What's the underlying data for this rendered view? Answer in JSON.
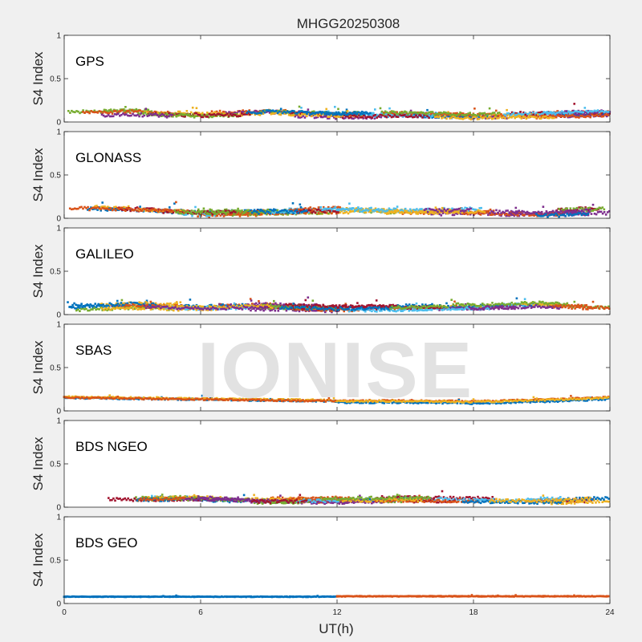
{
  "chart_data": {
    "type": "scatter",
    "title": "MHGG20250308",
    "xlabel": "UT(h)",
    "ylabel": "S4 Index",
    "xlim": [
      0,
      24
    ],
    "ylim": [
      0,
      1
    ],
    "xticks": [
      "0",
      "6",
      "12",
      "18",
      "24"
    ],
    "yticks": [
      "0",
      "0.5",
      "1"
    ],
    "grid": false,
    "watermark": "IONISE",
    "panels": [
      {
        "label": "GPS",
        "baseline": [
          0.09,
          0.11,
          0.08,
          0.1,
          0.08,
          0.09,
          0.07,
          0.08,
          0.1
        ],
        "spread": 0.035,
        "series_colors": [
          "#0072BD",
          "#D95319",
          "#EDB120",
          "#7E2F8E",
          "#77AC30",
          "#4DBEEE",
          "#A2142F"
        ]
      },
      {
        "label": "GLONASS",
        "baseline": [
          0.1,
          0.09,
          0.06,
          0.08,
          0.09,
          0.07,
          0.08,
          0.06,
          0.09
        ],
        "spread": 0.04,
        "series_colors": [
          "#0072BD",
          "#D95319",
          "#EDB120",
          "#7E2F8E",
          "#77AC30",
          "#4DBEEE",
          "#A2142F"
        ]
      },
      {
        "label": "GALILEO",
        "baseline": [
          0.07,
          0.1,
          0.08,
          0.09,
          0.07,
          0.08,
          0.09,
          0.11,
          0.07
        ],
        "spread": 0.035,
        "series_colors": [
          "#0072BD",
          "#D95319",
          "#EDB120",
          "#7E2F8E",
          "#77AC30",
          "#4DBEEE",
          "#A2142F"
        ]
      },
      {
        "label": "SBAS",
        "baseline": [
          0.15,
          0.14,
          0.13,
          0.12,
          0.11,
          0.11,
          0.1,
          0.12,
          0.15
        ],
        "spread": 0.018,
        "series_colors": [
          "#0072BD",
          "#D95319",
          "#EDB120"
        ]
      },
      {
        "label": "BDS NGEO",
        "baseline": [
          0.1,
          0.08,
          0.09,
          0.07,
          0.08,
          0.09,
          0.08,
          0.07,
          0.1
        ],
        "spread": 0.035,
        "series_colors": [
          "#0072BD",
          "#D95319",
          "#EDB120",
          "#7E2F8E",
          "#77AC30",
          "#4DBEEE",
          "#A2142F"
        ]
      },
      {
        "label": "BDS GEO",
        "baseline": [
          0.08,
          0.08,
          0.08,
          0.08,
          0.08,
          0.08,
          0.08,
          0.08,
          0.08
        ],
        "spread": 0.006,
        "series_colors": [
          "#0072BD",
          "#D95319"
        ]
      }
    ]
  }
}
